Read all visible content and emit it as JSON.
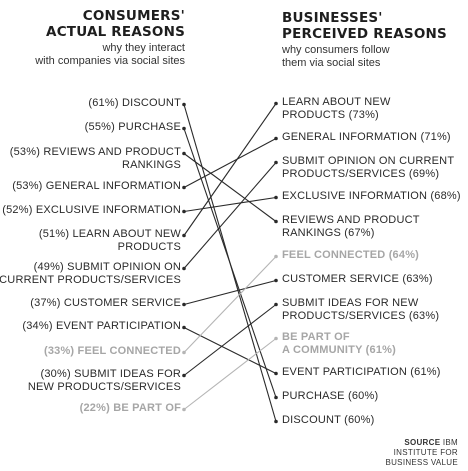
{
  "left_header": {
    "title_line1": "CONSUMERS'",
    "title_line2": "ACTUAL REASONS",
    "sub_line1": "why they interact",
    "sub_line2": "with companies via social sites"
  },
  "right_header": {
    "title_line1": "BUSINESSES'",
    "title_line2": "PERCEIVED REASONS",
    "sub_line1": "why consumers follow",
    "sub_line2": "them via social sites"
  },
  "left_items": [
    {
      "id": "discount",
      "lines": [
        "(61%) DISCOUNT"
      ],
      "faded": false
    },
    {
      "id": "purchase",
      "lines": [
        "(55%) PURCHASE"
      ],
      "faded": false
    },
    {
      "id": "reviews",
      "lines": [
        "(53%) REVIEWS AND PRODUCT",
        "RANKINGS"
      ],
      "faded": false
    },
    {
      "id": "general",
      "lines": [
        "(53%) GENERAL INFORMATION"
      ],
      "faded": false
    },
    {
      "id": "exclusive",
      "lines": [
        "(52%) EXCLUSIVE INFORMATION"
      ],
      "faded": false
    },
    {
      "id": "learn",
      "lines": [
        "(51%) LEARN ABOUT NEW",
        "PRODUCTS"
      ],
      "faded": false
    },
    {
      "id": "opinion",
      "lines": [
        "(49%) SUBMIT OPINION ON",
        "CURRENT PRODUCTS/SERVICES"
      ],
      "faded": false
    },
    {
      "id": "service",
      "lines": [
        "(37%) CUSTOMER SERVICE"
      ],
      "faded": false
    },
    {
      "id": "event",
      "lines": [
        "(34%) EVENT PARTICIPATION"
      ],
      "faded": false
    },
    {
      "id": "connected",
      "lines": [
        "(33%) FEEL CONNECTED"
      ],
      "faded": true
    },
    {
      "id": "ideas",
      "lines": [
        "(30%) SUBMIT IDEAS FOR",
        "NEW PRODUCTS/SERVICES"
      ],
      "faded": false
    },
    {
      "id": "community",
      "lines": [
        "(22%) BE PART OF"
      ],
      "faded": true
    }
  ],
  "right_items": [
    {
      "id": "learn",
      "lines": [
        "LEARN ABOUT NEW",
        "PRODUCTS (73%)"
      ],
      "faded": false
    },
    {
      "id": "general",
      "lines": [
        "GENERAL INFORMATION (71%)"
      ],
      "faded": false
    },
    {
      "id": "opinion",
      "lines": [
        "SUBMIT OPINION ON CURRENT",
        "PRODUCTS/SERVICES (69%)"
      ],
      "faded": false
    },
    {
      "id": "exclusive",
      "lines": [
        "EXCLUSIVE INFORMATION (68%)"
      ],
      "faded": false
    },
    {
      "id": "reviews",
      "lines": [
        "REVIEWS AND PRODUCT",
        "RANKINGS (67%)"
      ],
      "faded": false
    },
    {
      "id": "connected",
      "lines": [
        "FEEL CONNECTED (64%)"
      ],
      "faded": true
    },
    {
      "id": "service",
      "lines": [
        "CUSTOMER SERVICE (63%)"
      ],
      "faded": false
    },
    {
      "id": "ideas",
      "lines": [
        "SUBMIT IDEAS FOR NEW",
        "PRODUCTS/SERVICES (63%)"
      ],
      "faded": false
    },
    {
      "id": "community",
      "lines": [
        "BE PART OF",
        "A COMMUNITY (61%)"
      ],
      "faded": true
    },
    {
      "id": "event",
      "lines": [
        "EVENT PARTICIPATION (61%)"
      ],
      "faded": false
    },
    {
      "id": "purchase",
      "lines": [
        "PURCHASE (60%)"
      ],
      "faded": false
    },
    {
      "id": "discount",
      "lines": [
        "DISCOUNT (60%)"
      ],
      "faded": false
    }
  ],
  "source": {
    "label": "SOURCE",
    "line1": "IBM",
    "line2": "INSTITUTE FOR",
    "line3": "BUSINESS VALUE"
  }
}
